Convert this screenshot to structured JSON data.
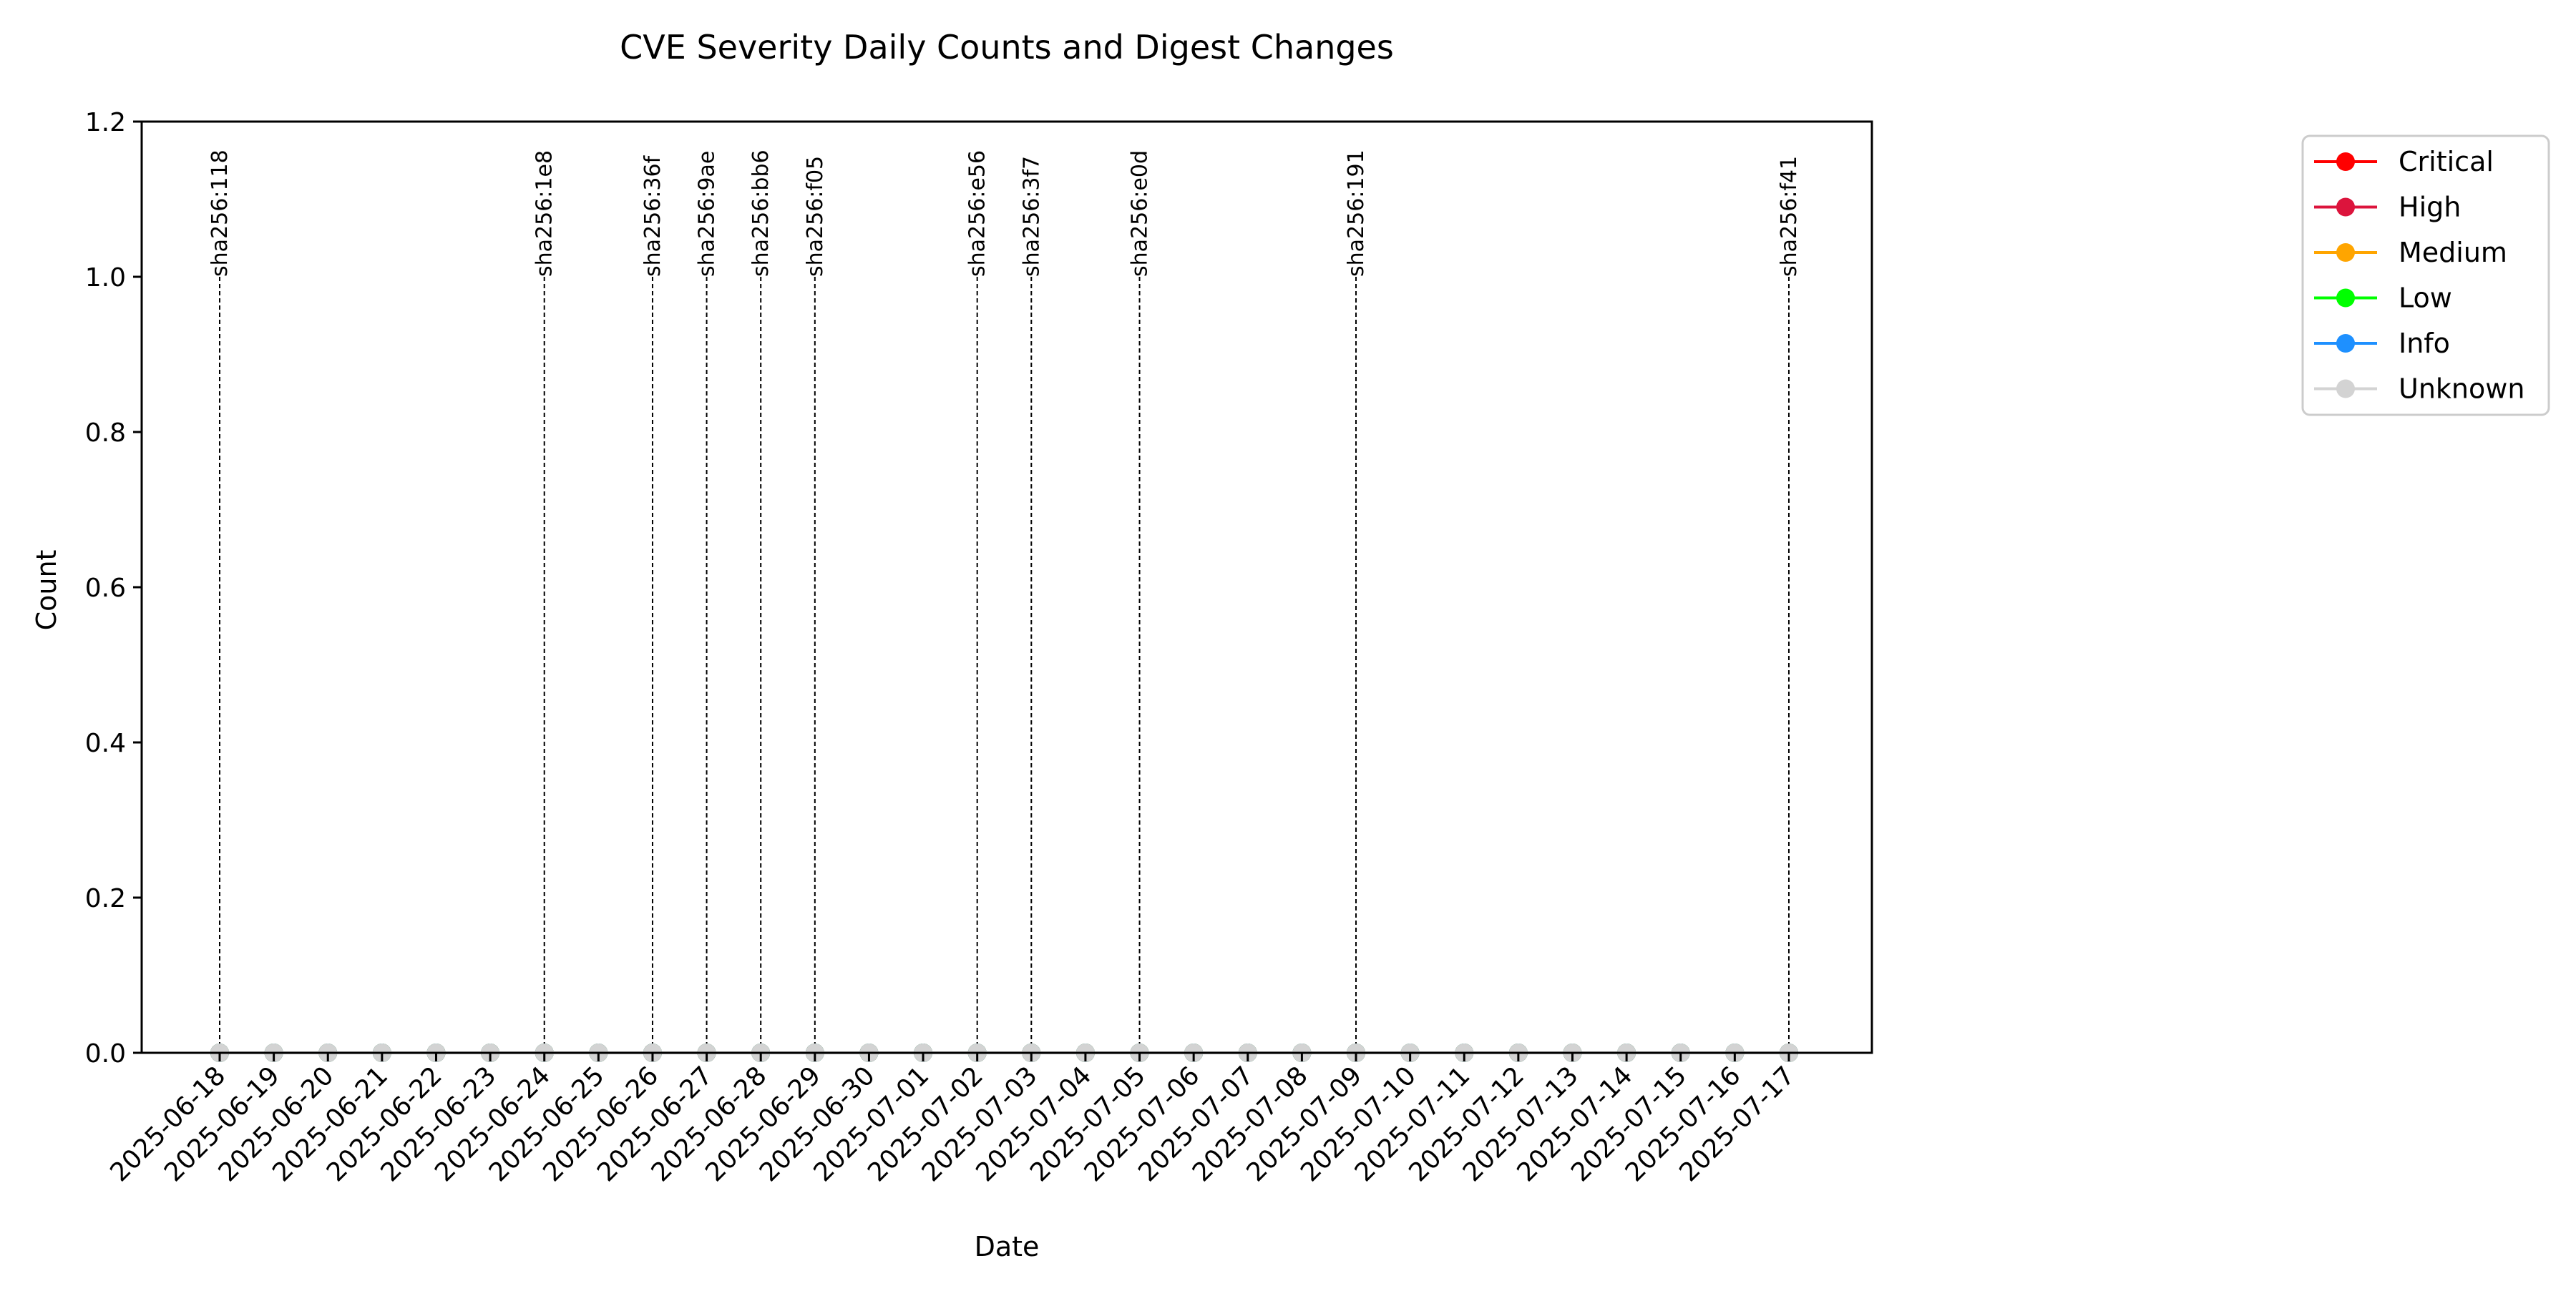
{
  "chart_data": {
    "type": "line",
    "title": "CVE Severity Daily Counts and Digest Changes",
    "xlabel": "Date",
    "ylabel": "Count",
    "ylim": [
      0,
      1.2
    ],
    "yticks": [
      "0.0",
      "0.2",
      "0.4",
      "0.6",
      "0.8",
      "1.0",
      "1.2"
    ],
    "grid": false,
    "legend_position": "outside-right",
    "categories": [
      "2025-06-18",
      "2025-06-19",
      "2025-06-20",
      "2025-06-21",
      "2025-06-22",
      "2025-06-23",
      "2025-06-24",
      "2025-06-25",
      "2025-06-26",
      "2025-06-27",
      "2025-06-28",
      "2025-06-29",
      "2025-06-30",
      "2025-07-01",
      "2025-07-02",
      "2025-07-03",
      "2025-07-04",
      "2025-07-05",
      "2025-07-06",
      "2025-07-07",
      "2025-07-08",
      "2025-07-09",
      "2025-07-10",
      "2025-07-11",
      "2025-07-12",
      "2025-07-13",
      "2025-07-14",
      "2025-07-15",
      "2025-07-16",
      "2025-07-17"
    ],
    "series": [
      {
        "name": "Critical",
        "color": "#ff0000",
        "values": [
          0,
          0,
          0,
          0,
          0,
          0,
          0,
          0,
          0,
          0,
          0,
          0,
          0,
          0,
          0,
          0,
          0,
          0,
          0,
          0,
          0,
          0,
          0,
          0,
          0,
          0,
          0,
          0,
          0,
          0
        ]
      },
      {
        "name": "High",
        "color": "#dc143c",
        "values": [
          0,
          0,
          0,
          0,
          0,
          0,
          0,
          0,
          0,
          0,
          0,
          0,
          0,
          0,
          0,
          0,
          0,
          0,
          0,
          0,
          0,
          0,
          0,
          0,
          0,
          0,
          0,
          0,
          0,
          0
        ]
      },
      {
        "name": "Medium",
        "color": "#ffa500",
        "values": [
          0,
          0,
          0,
          0,
          0,
          0,
          0,
          0,
          0,
          0,
          0,
          0,
          0,
          0,
          0,
          0,
          0,
          0,
          0,
          0,
          0,
          0,
          0,
          0,
          0,
          0,
          0,
          0,
          0,
          0
        ]
      },
      {
        "name": "Low",
        "color": "#00ff00",
        "values": [
          0,
          0,
          0,
          0,
          0,
          0,
          0,
          0,
          0,
          0,
          0,
          0,
          0,
          0,
          0,
          0,
          0,
          0,
          0,
          0,
          0,
          0,
          0,
          0,
          0,
          0,
          0,
          0,
          0,
          0
        ]
      },
      {
        "name": "Info",
        "color": "#1e90ff",
        "values": [
          0,
          0,
          0,
          0,
          0,
          0,
          0,
          0,
          0,
          0,
          0,
          0,
          0,
          0,
          0,
          0,
          0,
          0,
          0,
          0,
          0,
          0,
          0,
          0,
          0,
          0,
          0,
          0,
          0,
          0
        ]
      },
      {
        "name": "Unknown",
        "color": "#d3d3d3",
        "values": [
          0,
          0,
          0,
          0,
          0,
          0,
          0,
          0,
          0,
          0,
          0,
          0,
          0,
          0,
          0,
          0,
          0,
          0,
          0,
          0,
          0,
          0,
          0,
          0,
          0,
          0,
          0,
          0,
          0,
          0
        ]
      }
    ],
    "annotations": [
      {
        "date": "2025-06-18",
        "label": "sha256:118"
      },
      {
        "date": "2025-06-24",
        "label": "sha256:1e8"
      },
      {
        "date": "2025-06-26",
        "label": "sha256:36f"
      },
      {
        "date": "2025-06-27",
        "label": "sha256:9ae"
      },
      {
        "date": "2025-06-28",
        "label": "sha256:bb6"
      },
      {
        "date": "2025-06-29",
        "label": "sha256:f05"
      },
      {
        "date": "2025-07-02",
        "label": "sha256:e56"
      },
      {
        "date": "2025-07-03",
        "label": "sha256:3f7"
      },
      {
        "date": "2025-07-05",
        "label": "sha256:e0d"
      },
      {
        "date": "2025-07-09",
        "label": "sha256:191"
      },
      {
        "date": "2025-07-17",
        "label": "sha256:f41"
      }
    ]
  }
}
